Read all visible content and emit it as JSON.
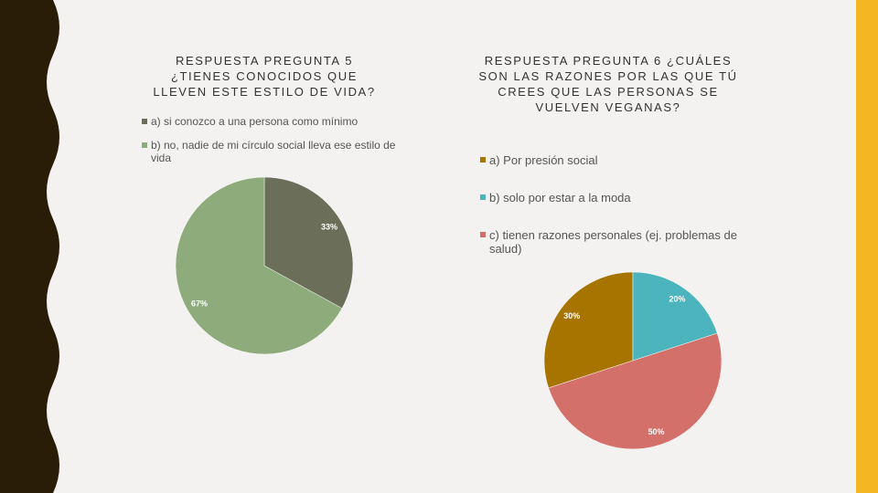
{
  "chart_data": [
    {
      "type": "pie",
      "title": "RESPUESTA PREGUNTA 5 ¿TIENES CONOCIDOS QUE LLEVEN ESTE ESTILO DE VIDA?",
      "categories": [
        "a) si conozco a una persona como mínimo",
        "b) no, nadie de mi círculo social lleva ese estilo de vida"
      ],
      "values": [
        33,
        67
      ],
      "value_labels": [
        "33%",
        "67%"
      ],
      "colors": [
        "#6b6e58",
        "#8eab7c"
      ],
      "start_angle": 0
    },
    {
      "type": "pie",
      "title": "RESPUESTA PREGUNTA 6 ¿CUÁLES SON LAS RAZONES POR LAS QUE TÚ CREES QUE LAS PERSONAS SE VUELVEN VEGANAS?",
      "categories": [
        "a) Por presión social",
        "b) solo por estar a la moda",
        "c) tienen razones personales (ej. problemas de salud)"
      ],
      "values": [
        30,
        20,
        50
      ],
      "value_labels": [
        "30%",
        "20%",
        "50%"
      ],
      "colors": [
        "#a87400",
        "#4bb4bc",
        "#d4706a"
      ],
      "start_angle": -108
    }
  ]
}
